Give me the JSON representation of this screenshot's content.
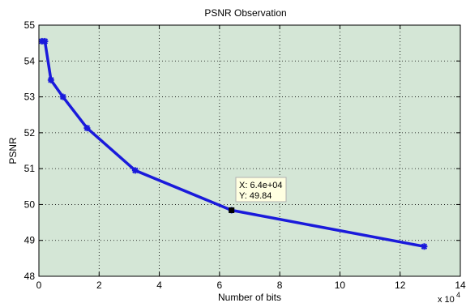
{
  "chart_data": {
    "type": "line",
    "title": "PSNR Observation",
    "xlabel": "Number of bits",
    "ylabel": "PSNR",
    "xlim": [
      0,
      140000
    ],
    "ylim": [
      48,
      55
    ],
    "x_ticks": [
      "0",
      "2",
      "4",
      "6",
      "8",
      "10",
      "12",
      "14"
    ],
    "x_tick_values": [
      0,
      20000,
      40000,
      60000,
      80000,
      100000,
      120000,
      140000
    ],
    "x_exponent_base": "x 10",
    "x_exponent_power": "4",
    "y_ticks": [
      "48",
      "49",
      "50",
      "51",
      "52",
      "53",
      "54",
      "55"
    ],
    "y_tick_values": [
      48,
      49,
      50,
      51,
      52,
      53,
      54,
      55
    ],
    "grid": true,
    "grid_style": "dotted",
    "background_color": "#d4e6d6",
    "series": [
      {
        "color": "#1a1adb",
        "marker": "star",
        "x": [
          1000,
          2000,
          4000,
          8000,
          16000,
          32000,
          64000,
          128000
        ],
        "y": [
          54.55,
          54.55,
          53.47,
          53.0,
          52.13,
          50.95,
          49.84,
          48.83
        ]
      }
    ],
    "datatip": {
      "x_label": "X: 6.4e+04",
      "y_label": "Y: 49.84",
      "x": 64000,
      "y": 49.84
    }
  }
}
